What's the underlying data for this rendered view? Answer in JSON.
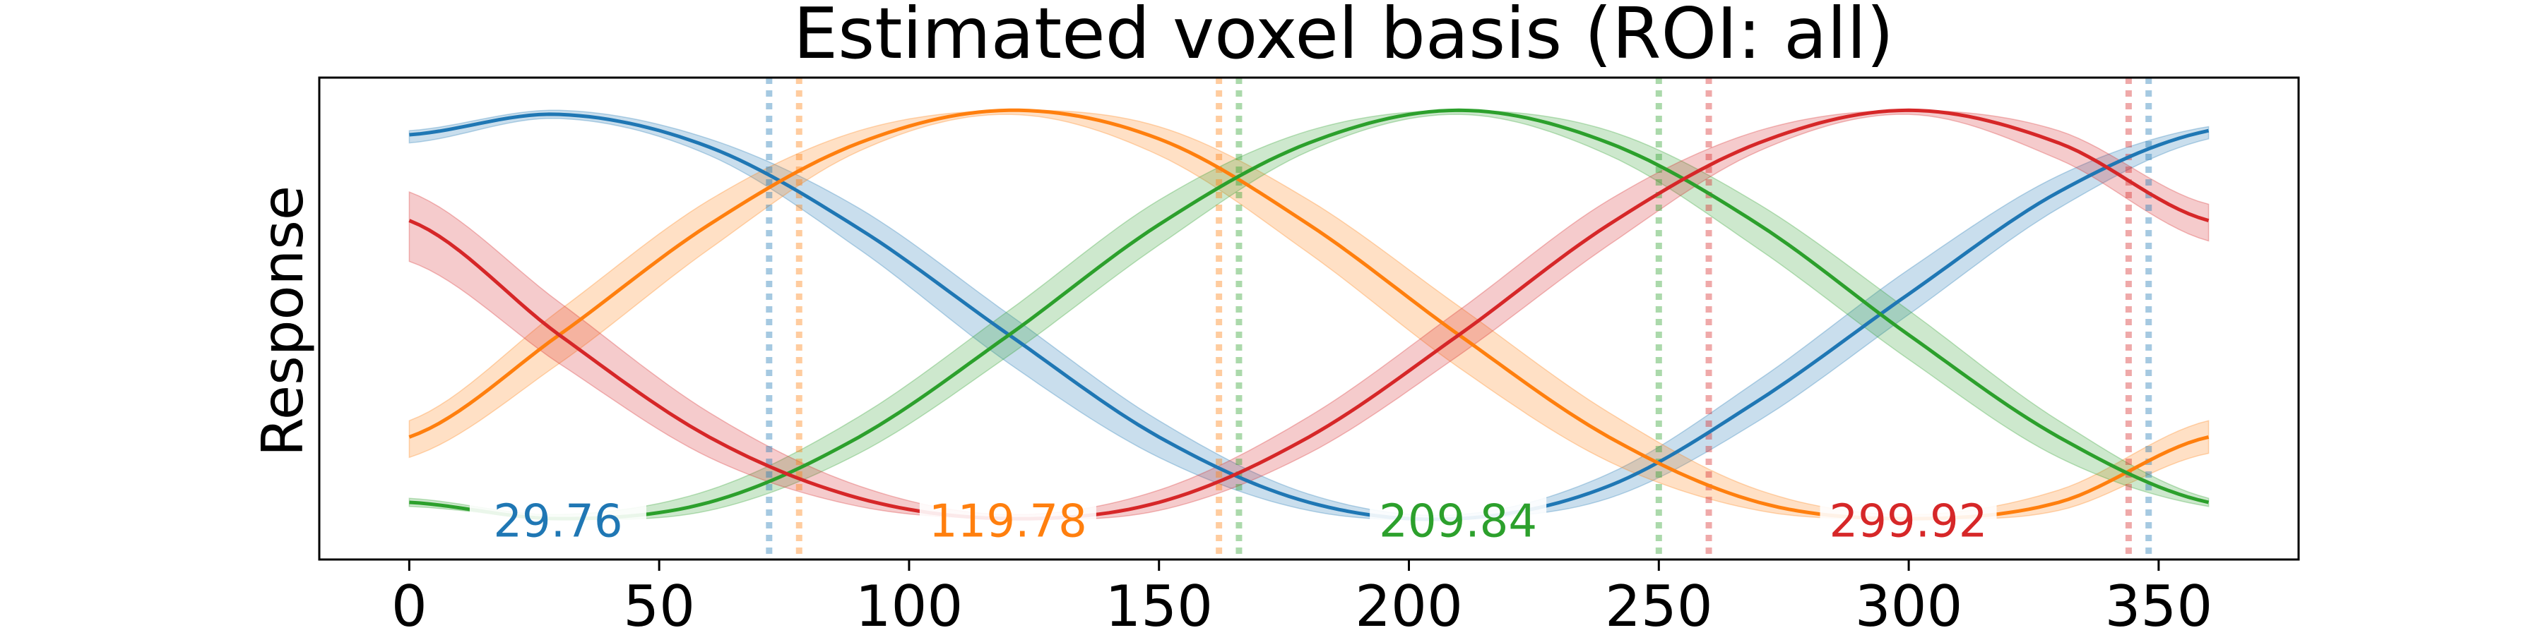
{
  "chart_data": {
    "type": "line",
    "title": "Estimated voxel basis (ROI: all)",
    "xlabel": "",
    "ylabel": "Response",
    "xlim": [
      -18,
      378
    ],
    "ylim": [
      -0.1,
      1.08
    ],
    "xticks": [
      0,
      50,
      100,
      150,
      200,
      250,
      300,
      350
    ],
    "yticks_visible": false,
    "grid": false,
    "series": [
      {
        "color": "#1f77b4",
        "peak": 29.76,
        "peak_label": "29.76",
        "x": [
          0,
          30,
          60,
          90,
          120,
          150,
          180,
          210,
          240,
          270,
          300,
          330,
          360
        ],
        "y": [
          0.94,
          0.99,
          0.91,
          0.71,
          0.45,
          0.2,
          0.04,
          0.0,
          0.08,
          0.29,
          0.55,
          0.8,
          0.95
        ],
        "lower": [
          0.92,
          0.98,
          0.89,
          0.66,
          0.38,
          0.15,
          0.02,
          0.0,
          0.05,
          0.24,
          0.5,
          0.76,
          0.93
        ],
        "upper": [
          0.95,
          1.0,
          0.93,
          0.76,
          0.5,
          0.24,
          0.06,
          0.01,
          0.11,
          0.34,
          0.61,
          0.84,
          0.96
        ],
        "vlines": [
          72,
          348
        ]
      },
      {
        "color": "#ff7f0e",
        "peak": 119.78,
        "peak_label": "119.78",
        "x": [
          0,
          30,
          60,
          90,
          120,
          150,
          180,
          210,
          240,
          270,
          300,
          330,
          360
        ],
        "y": [
          0.2,
          0.45,
          0.72,
          0.92,
          1.0,
          0.93,
          0.72,
          0.45,
          0.2,
          0.04,
          0.0,
          0.04,
          0.2
        ],
        "lower": [
          0.15,
          0.38,
          0.66,
          0.9,
          0.99,
          0.89,
          0.65,
          0.37,
          0.14,
          0.02,
          0.0,
          0.02,
          0.16
        ],
        "upper": [
          0.24,
          0.51,
          0.78,
          0.95,
          1.0,
          0.96,
          0.78,
          0.52,
          0.26,
          0.07,
          0.01,
          0.07,
          0.24
        ],
        "vlines": [
          78,
          162
        ]
      },
      {
        "color": "#2ca02c",
        "peak": 209.84,
        "peak_label": "209.84",
        "x": [
          0,
          30,
          60,
          90,
          120,
          150,
          180,
          210,
          240,
          270,
          300,
          330,
          360
        ],
        "y": [
          0.04,
          0.0,
          0.04,
          0.2,
          0.45,
          0.72,
          0.92,
          1.0,
          0.92,
          0.72,
          0.45,
          0.2,
          0.04
        ],
        "lower": [
          0.03,
          0.0,
          0.02,
          0.16,
          0.4,
          0.67,
          0.9,
          0.99,
          0.89,
          0.66,
          0.39,
          0.15,
          0.03
        ],
        "upper": [
          0.05,
          0.01,
          0.07,
          0.25,
          0.51,
          0.78,
          0.95,
          1.0,
          0.95,
          0.77,
          0.51,
          0.24,
          0.05
        ],
        "vlines": [
          166,
          250
        ]
      },
      {
        "color": "#d62728",
        "peak": 299.92,
        "peak_label": "299.92",
        "x": [
          0,
          30,
          60,
          90,
          120,
          150,
          180,
          210,
          240,
          270,
          300,
          330,
          360
        ],
        "y": [
          0.73,
          0.45,
          0.2,
          0.05,
          0.0,
          0.04,
          0.2,
          0.45,
          0.72,
          0.92,
          1.0,
          0.92,
          0.73
        ],
        "lower": [
          0.63,
          0.38,
          0.15,
          0.03,
          0.0,
          0.02,
          0.16,
          0.4,
          0.67,
          0.9,
          0.99,
          0.88,
          0.68
        ],
        "upper": [
          0.8,
          0.53,
          0.26,
          0.08,
          0.01,
          0.07,
          0.25,
          0.51,
          0.78,
          0.95,
          1.0,
          0.95,
          0.77
        ],
        "vlines": [
          260,
          344
        ]
      }
    ]
  }
}
